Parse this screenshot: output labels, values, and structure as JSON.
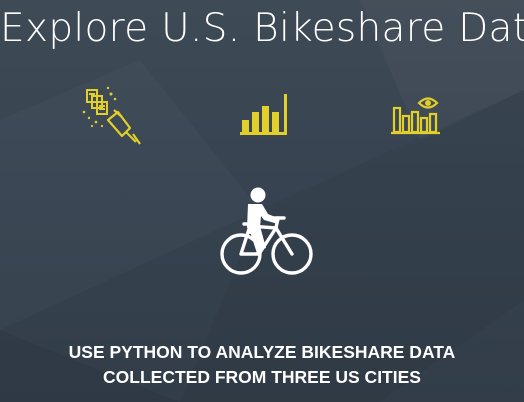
{
  "banner": {
    "title": "Explore U.S. Bikeshare Data",
    "caption_line1": "USE PYTHON TO ANALYZE BIKESHARE DATA",
    "caption_line2": "COLLECTED FROM THREE US CITIES"
  },
  "icons": [
    "data-wrangling-icon",
    "bar-chart-icon",
    "data-visualization-icon",
    "cyclist-icon"
  ],
  "colors": {
    "background": "#3a4652",
    "accent": "#e2cf2a",
    "text": "#ffffff"
  }
}
